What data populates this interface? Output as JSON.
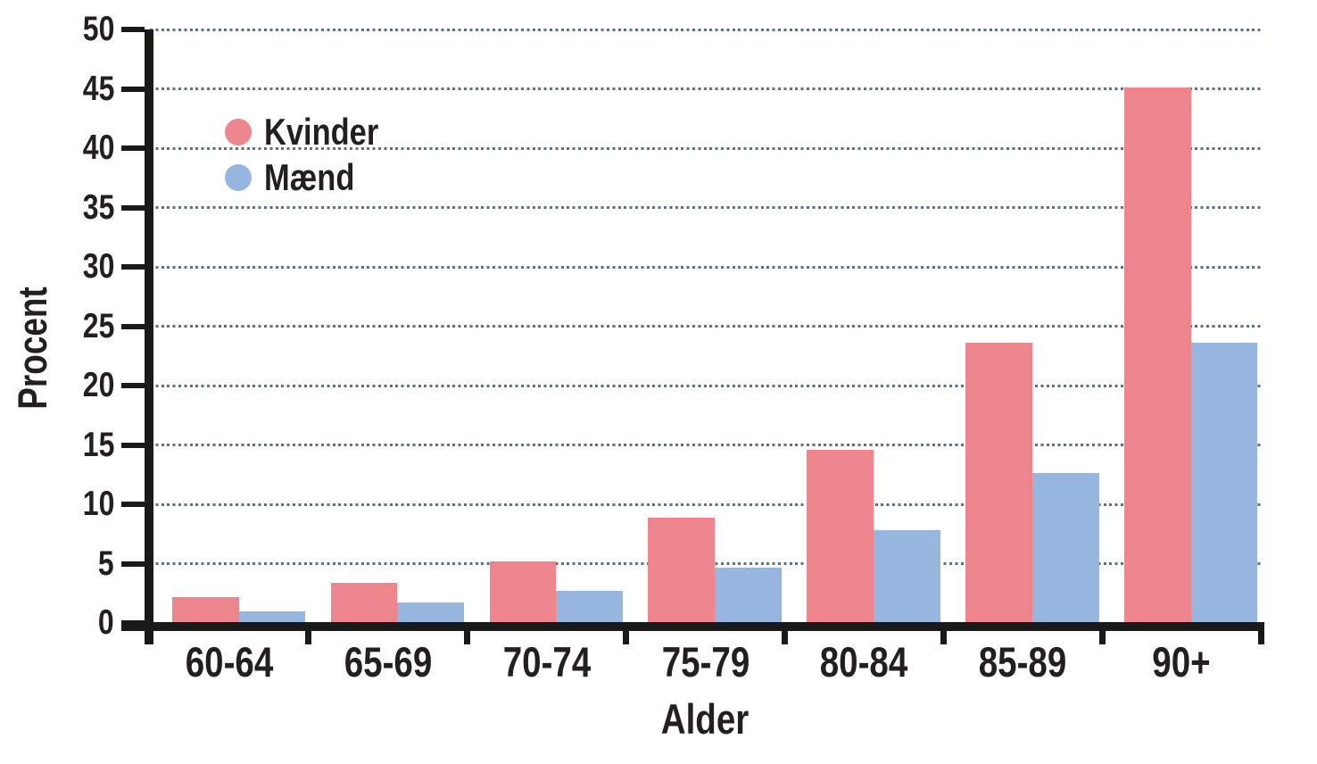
{
  "chart_data": {
    "type": "bar",
    "title": "",
    "categories": [
      "60-64",
      "65-69",
      "70-74",
      "75-79",
      "80-84",
      "85-89",
      "90+"
    ],
    "series": [
      {
        "key": "kvinder",
        "name": "Kvinder",
        "color": "#ec868c",
        "values": [
          2.2,
          3.4,
          5.2,
          8.9,
          14.6,
          23.6,
          45.1
        ]
      },
      {
        "key": "maend",
        "name": "Mænd",
        "color": "#96b5df",
        "values": [
          1.0,
          1.7,
          2.7,
          4.7,
          7.8,
          12.6,
          23.6
        ]
      }
    ],
    "xlabel": "Alder",
    "ylabel": "Procent",
    "ylim": [
      0,
      50
    ],
    "ytick_step": 5,
    "grid": "dotted-horizontal",
    "legend_position": "top-left-inside"
  },
  "colors": {
    "axis": "#1a1a1a",
    "grid_dots": "#5e6f80",
    "text": "#231f20",
    "background": "#ffffff"
  }
}
